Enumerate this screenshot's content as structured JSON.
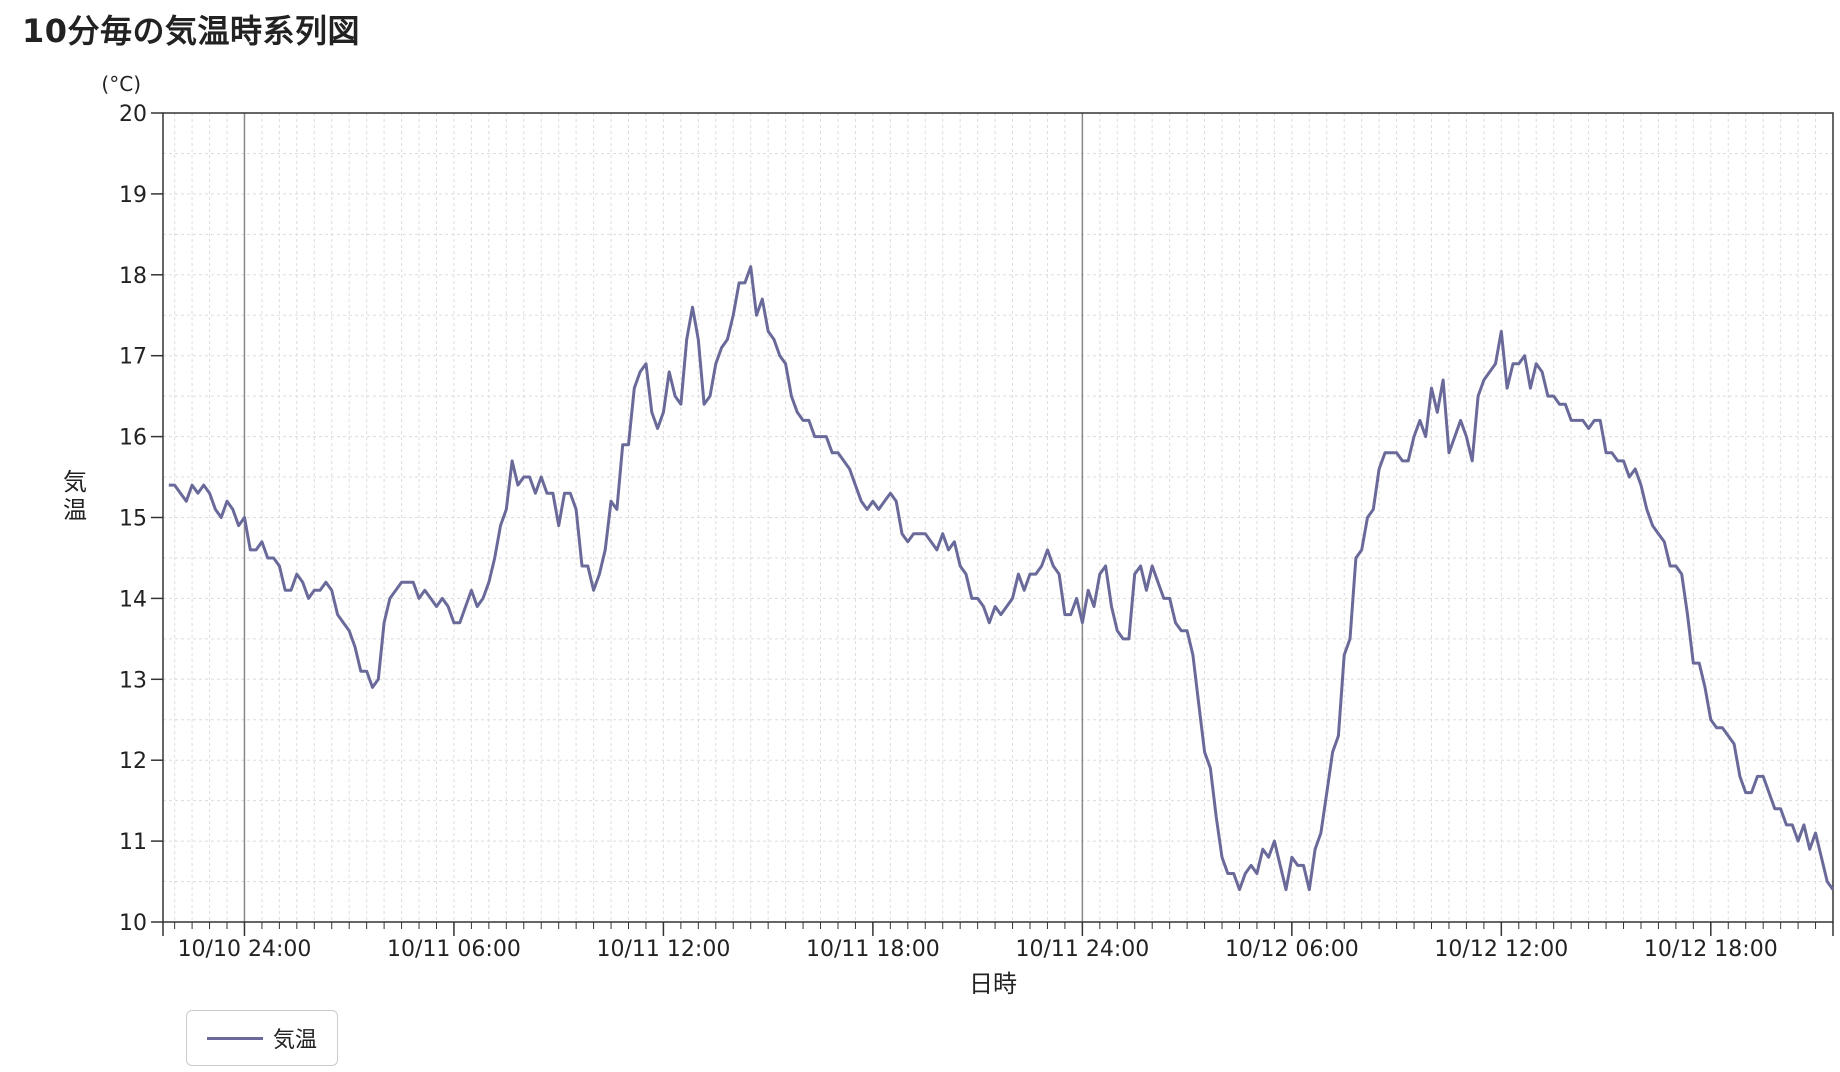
{
  "title": "10分毎の気温時系列図",
  "chart_data": {
    "type": "line",
    "xlabel": "日時",
    "ylabel": "気温",
    "y_unit": "(°C)",
    "ylim": [
      10,
      20
    ],
    "y_ticks": [
      "10",
      "11",
      "12",
      "13",
      "14",
      "15",
      "16",
      "17",
      "18",
      "19",
      "20"
    ],
    "x_ticks": [
      {
        "time_min": 0,
        "label": "10/10 24:00"
      },
      {
        "time_min": 360,
        "label": "10/11 06:00"
      },
      {
        "time_min": 720,
        "label": "10/11 12:00"
      },
      {
        "time_min": 1080,
        "label": "10/11 18:00"
      },
      {
        "time_min": 1440,
        "label": "10/11 24:00"
      },
      {
        "time_min": 1800,
        "label": "10/12 06:00"
      },
      {
        "time_min": 2160,
        "label": "10/12 12:00"
      },
      {
        "time_min": 2520,
        "label": "10/12 18:00"
      }
    ],
    "xlim_min": [
      -140,
      2730
    ],
    "grid": true,
    "legend_position": "bottom-left",
    "series": [
      {
        "name": "気温",
        "color": "#6a6a9a",
        "start_min": -130,
        "interval_min": 10,
        "values": [
          15.4,
          15.4,
          15.3,
          15.2,
          15.4,
          15.3,
          15.4,
          15.3,
          15.1,
          15.0,
          15.2,
          15.1,
          14.9,
          15.0,
          14.6,
          14.6,
          14.7,
          14.5,
          14.5,
          14.4,
          14.1,
          14.1,
          14.3,
          14.2,
          14.0,
          14.1,
          14.1,
          14.2,
          14.1,
          13.8,
          13.7,
          13.6,
          13.4,
          13.1,
          13.1,
          12.9,
          13.0,
          13.7,
          14.0,
          14.1,
          14.2,
          14.2,
          14.2,
          14.0,
          14.1,
          14.0,
          13.9,
          14.0,
          13.9,
          13.7,
          13.7,
          13.9,
          14.1,
          13.9,
          14.0,
          14.2,
          14.5,
          14.9,
          15.1,
          15.7,
          15.4,
          15.5,
          15.5,
          15.3,
          15.5,
          15.3,
          15.3,
          14.9,
          15.3,
          15.3,
          15.1,
          14.4,
          14.4,
          14.1,
          14.3,
          14.6,
          15.2,
          15.1,
          15.9,
          15.9,
          16.6,
          16.8,
          16.9,
          16.3,
          16.1,
          16.3,
          16.8,
          16.5,
          16.4,
          17.2,
          17.6,
          17.2,
          16.4,
          16.5,
          16.9,
          17.1,
          17.2,
          17.5,
          17.9,
          17.9,
          18.1,
          17.5,
          17.7,
          17.3,
          17.2,
          17.0,
          16.9,
          16.5,
          16.3,
          16.2,
          16.2,
          16.0,
          16.0,
          16.0,
          15.8,
          15.8,
          15.7,
          15.6,
          15.4,
          15.2,
          15.1,
          15.2,
          15.1,
          15.2,
          15.3,
          15.2,
          14.8,
          14.7,
          14.8,
          14.8,
          14.8,
          14.7,
          14.6,
          14.8,
          14.6,
          14.7,
          14.4,
          14.3,
          14.0,
          14.0,
          13.9,
          13.7,
          13.9,
          13.8,
          13.9,
          14.0,
          14.3,
          14.1,
          14.3,
          14.3,
          14.4,
          14.6,
          14.4,
          14.3,
          13.8,
          13.8,
          14.0,
          13.7,
          14.1,
          13.9,
          14.3,
          14.4,
          13.9,
          13.6,
          13.5,
          13.5,
          14.3,
          14.4,
          14.1,
          14.4,
          14.2,
          14.0,
          14.0,
          13.7,
          13.6,
          13.6,
          13.3,
          12.7,
          12.1,
          11.9,
          11.3,
          10.8,
          10.6,
          10.6,
          10.4,
          10.6,
          10.7,
          10.6,
          10.9,
          10.8,
          11.0,
          10.7,
          10.4,
          10.8,
          10.7,
          10.7,
          10.4,
          10.9,
          11.1,
          11.6,
          12.1,
          12.3,
          13.3,
          13.5,
          14.5,
          14.6,
          15.0,
          15.1,
          15.6,
          15.8,
          15.8,
          15.8,
          15.7,
          15.7,
          16.0,
          16.2,
          16.0,
          16.6,
          16.3,
          16.7,
          15.8,
          16.0,
          16.2,
          16.0,
          15.7,
          16.5,
          16.7,
          16.8,
          16.9,
          17.3,
          16.6,
          16.9,
          16.9,
          17.0,
          16.6,
          16.9,
          16.8,
          16.5,
          16.5,
          16.4,
          16.4,
          16.2,
          16.2,
          16.2,
          16.1,
          16.2,
          16.2,
          15.8,
          15.8,
          15.7,
          15.7,
          15.5,
          15.6,
          15.4,
          15.1,
          14.9,
          14.8,
          14.7,
          14.4,
          14.4,
          14.3,
          13.8,
          13.2,
          13.2,
          12.9,
          12.5,
          12.4,
          12.4,
          12.3,
          12.2,
          11.8,
          11.6,
          11.6,
          11.8,
          11.8,
          11.6,
          11.4,
          11.4,
          11.2,
          11.2,
          11.0,
          11.2,
          10.9,
          11.1,
          10.8,
          10.5,
          10.4
        ]
      }
    ]
  }
}
